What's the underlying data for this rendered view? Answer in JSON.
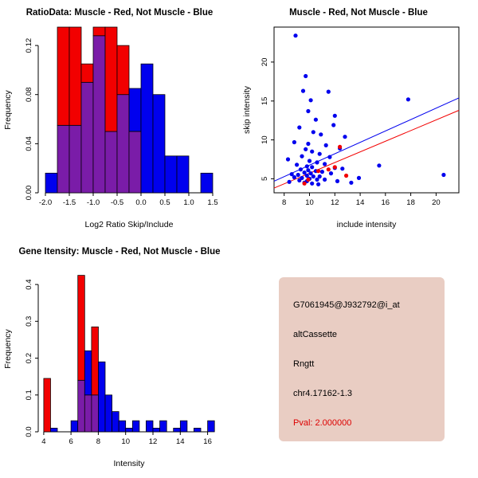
{
  "colors": {
    "red": "#F20000",
    "blue": "#0000EE",
    "overlap": "#7A1CA8",
    "axis": "#000000",
    "info_bg": "#E9CDC3",
    "pval_red": "#DD0000"
  },
  "chart_data": [
    {
      "id": "ratio-histogram",
      "type": "bar",
      "subtype": "overlaid-histogram",
      "title": "RatioData: Muscle - Red, Not Muscle - Blue",
      "xlabel": "Log2 Ratio Skip/Include",
      "ylabel": "Frequency",
      "xlim": [
        -2.15,
        1.65
      ],
      "ylim": [
        0,
        0.135
      ],
      "xticks": [
        -2.0,
        -1.5,
        -1.0,
        -0.5,
        0.0,
        0.5,
        1.0,
        1.5
      ],
      "xtick_labels": [
        "-2.0",
        "-1.5",
        "-1.0",
        "-0.5",
        "0.0",
        "0.5",
        "1.0",
        "1.5"
      ],
      "yticks": [
        0,
        0.04,
        0.08,
        0.12
      ],
      "ytick_labels": [
        "0.00",
        "0.04",
        "0.08",
        "0.12"
      ],
      "bin_start": -2.0,
      "bin_width": 0.25,
      "legend_note": "Muscle - Red, Not Muscle - Blue",
      "series": [
        {
          "name": "Muscle",
          "color_key": "red",
          "values": [
            0,
            0.135,
            0.135,
            0.105,
            0.135,
            0.135,
            0.12,
            0.05,
            0,
            0,
            0,
            0,
            0,
            0
          ]
        },
        {
          "name": "Not Muscle",
          "color_key": "blue",
          "values": [
            0.016,
            0.055,
            0.055,
            0.09,
            0.128,
            0.05,
            0.08,
            0.085,
            0.105,
            0.08,
            0.03,
            0.03,
            0,
            0.016
          ]
        }
      ]
    },
    {
      "id": "intensity-scatter",
      "type": "scatter",
      "title": "Muscle - Red, Not Muscle - Blue",
      "xlabel": "include intensity",
      "ylabel": "skip intensity",
      "xlim": [
        7.2,
        21.8
      ],
      "ylim": [
        3.2,
        24.5
      ],
      "xticks": [
        8,
        10,
        12,
        14,
        16,
        18,
        20
      ],
      "xtick_labels": [
        "8",
        "10",
        "12",
        "14",
        "16",
        "18",
        "20"
      ],
      "yticks": [
        5,
        10,
        15,
        20
      ],
      "ytick_labels": [
        "5",
        "10",
        "15",
        "20"
      ],
      "series": [
        {
          "name": "Not Muscle",
          "color_key": "blue",
          "points": [
            [
              8.9,
              23.4
            ],
            [
              9.7,
              18.2
            ],
            [
              9.5,
              16.3
            ],
            [
              11.5,
              16.2
            ],
            [
              17.8,
              15.2
            ],
            [
              9.9,
              13.7
            ],
            [
              10.5,
              12.6
            ],
            [
              12.0,
              13.1
            ],
            [
              9.2,
              11.6
            ],
            [
              10.3,
              11.0
            ],
            [
              10.9,
              10.7
            ],
            [
              12.8,
              10.4
            ],
            [
              8.8,
              9.7
            ],
            [
              9.9,
              9.5
            ],
            [
              11.3,
              9.3
            ],
            [
              9.7,
              8.8
            ],
            [
              10.2,
              8.5
            ],
            [
              10.8,
              8.2
            ],
            [
              9.4,
              7.9
            ],
            [
              11.6,
              7.8
            ],
            [
              8.3,
              7.5
            ],
            [
              10.0,
              7.3
            ],
            [
              10.6,
              7.1
            ],
            [
              11.2,
              6.9
            ],
            [
              9.0,
              6.8
            ],
            [
              9.8,
              6.6
            ],
            [
              10.2,
              6.5
            ],
            [
              12.0,
              6.4
            ],
            [
              12.6,
              6.3
            ],
            [
              9.3,
              6.2
            ],
            [
              9.9,
              6.1
            ],
            [
              10.5,
              6.0
            ],
            [
              11.0,
              5.9
            ],
            [
              9.6,
              5.8
            ],
            [
              10.1,
              5.7
            ],
            [
              11.7,
              5.7
            ],
            [
              8.6,
              5.6
            ],
            [
              9.1,
              5.5
            ],
            [
              9.8,
              5.4
            ],
            [
              10.3,
              5.3
            ],
            [
              10.8,
              5.3
            ],
            [
              8.8,
              5.2
            ],
            [
              9.4,
              5.1
            ],
            [
              10.0,
              5.0
            ],
            [
              13.9,
              5.1
            ],
            [
              10.6,
              4.9
            ],
            [
              11.2,
              4.9
            ],
            [
              9.2,
              4.8
            ],
            [
              9.8,
              4.7
            ],
            [
              12.2,
              4.7
            ],
            [
              8.4,
              4.6
            ],
            [
              9.6,
              4.5
            ],
            [
              10.2,
              4.4
            ],
            [
              10.7,
              4.3
            ],
            [
              15.5,
              6.7
            ],
            [
              20.6,
              5.5
            ],
            [
              13.3,
              4.5
            ],
            [
              12.4,
              8.9
            ],
            [
              11.9,
              11.9
            ],
            [
              10.1,
              15.1
            ]
          ]
        },
        {
          "name": "Muscle",
          "color_key": "red",
          "points": [
            [
              9.9,
              4.9
            ],
            [
              10.7,
              6.0
            ],
            [
              11.5,
              6.2
            ],
            [
              12.0,
              6.5
            ],
            [
              12.9,
              5.4
            ],
            [
              12.4,
              9.1
            ],
            [
              9.6,
              4.4
            ]
          ]
        }
      ],
      "lines": [
        {
          "name": "not-muscle-fit",
          "color_key": "blue",
          "x1": 7.2,
          "y1": 4.7,
          "x2": 21.8,
          "y2": 15.4
        },
        {
          "name": "muscle-fit",
          "color_key": "red",
          "x1": 7.2,
          "y1": 3.8,
          "x2": 21.8,
          "y2": 13.8
        }
      ]
    },
    {
      "id": "gene-intensity-histogram",
      "type": "bar",
      "subtype": "overlaid-histogram",
      "title": "Gene Itensity: Muscle - Red, Not Muscle - Blue",
      "xlabel": "Intensity",
      "ylabel": "Frequency",
      "xlim": [
        3.6,
        16.9
      ],
      "ylim": [
        0,
        0.45
      ],
      "xticks": [
        4,
        6,
        8,
        10,
        12,
        14,
        16
      ],
      "xtick_labels": [
        "4",
        "6",
        "8",
        "10",
        "12",
        "14",
        "16"
      ],
      "yticks": [
        0,
        0.1,
        0.2,
        0.3,
        0.4
      ],
      "ytick_labels": [
        "0.0",
        "0.1",
        "0.2",
        "0.3",
        "0.4"
      ],
      "bin_start": 4.0,
      "bin_width": 0.5,
      "legend_note": "Muscle - Red, Not Muscle - Blue",
      "series": [
        {
          "name": "Muscle",
          "color_key": "red",
          "values": [
            0.145,
            0,
            0,
            0,
            0,
            0.425,
            0.1,
            0.285,
            0,
            0,
            0,
            0,
            0,
            0,
            0,
            0,
            0,
            0,
            0,
            0,
            0,
            0,
            0,
            0,
            0
          ]
        },
        {
          "name": "Not Muscle",
          "color_key": "blue",
          "values": [
            0,
            0.01,
            0,
            0,
            0.03,
            0.14,
            0.22,
            0.1,
            0.19,
            0.1,
            0.055,
            0.03,
            0.01,
            0.03,
            0,
            0.03,
            0.01,
            0.03,
            0,
            0.01,
            0.03,
            0,
            0.01,
            0,
            0.03
          ]
        }
      ]
    }
  ],
  "info_box": {
    "lines": [
      {
        "text": "G7061945@J932792@i_at",
        "color": "#000000"
      },
      {
        "text": "altCassette",
        "color": "#000000"
      },
      {
        "text": "Rngtt",
        "color": "#000000"
      },
      {
        "text": "chr4.17162-1.3",
        "color": "#000000"
      },
      {
        "text": "Pval: 2.000000",
        "color": "#DD0000"
      }
    ]
  }
}
